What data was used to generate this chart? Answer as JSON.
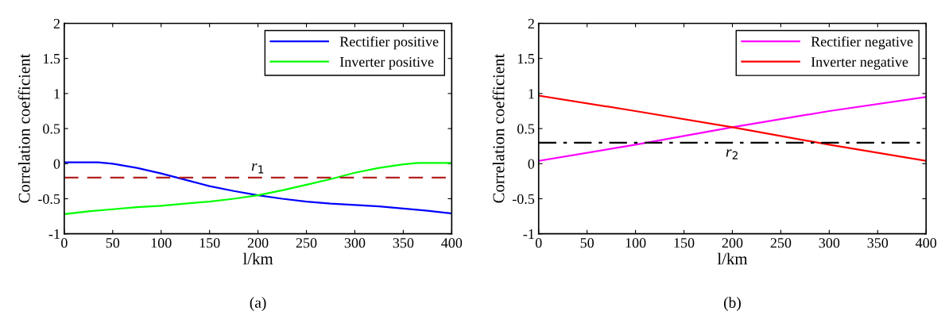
{
  "chart_data": [
    {
      "type": "line",
      "xlabel": "l/km",
      "ylabel": "Correlation coefficient",
      "annotations": [
        "(a)"
      ],
      "xlim": [
        0,
        400
      ],
      "xticks": [
        0,
        50,
        100,
        150,
        200,
        250,
        300,
        350,
        400
      ],
      "ylim": [
        -1,
        2
      ],
      "yticks": [
        -1,
        -0.5,
        0,
        0.5,
        1,
        1.5,
        2
      ],
      "grid": false,
      "legend": "top right",
      "line_style": "solid",
      "marker": "none",
      "series": [
        {
          "name": "Rectifier positive",
          "color": "#0000ff",
          "x": [
            0,
            35,
            50,
            75,
            100,
            125,
            150,
            175,
            200,
            225,
            250,
            275,
            300,
            325,
            350,
            375,
            400
          ],
          "values": [
            0.02,
            0.02,
            0.0,
            -0.06,
            -0.14,
            -0.23,
            -0.32,
            -0.39,
            -0.45,
            -0.5,
            -0.54,
            -0.57,
            -0.59,
            -0.61,
            -0.64,
            -0.67,
            -0.71
          ]
        },
        {
          "name": "Inverter positive",
          "color": "#00ff00",
          "x": [
            0,
            25,
            50,
            75,
            100,
            125,
            150,
            175,
            200,
            225,
            250,
            275,
            300,
            325,
            350,
            365,
            400
          ],
          "values": [
            -0.72,
            -0.68,
            -0.65,
            -0.62,
            -0.6,
            -0.57,
            -0.54,
            -0.5,
            -0.45,
            -0.38,
            -0.3,
            -0.22,
            -0.13,
            -0.06,
            -0.01,
            0.01,
            0.01
          ]
        }
      ],
      "ref_lines": [
        {
          "axis": "y",
          "value": -0.2,
          "label": "r$_{1}$",
          "color": "#b22222",
          "line_style": "dashed"
        }
      ]
    },
    {
      "type": "line",
      "xlabel": "l/km",
      "ylabel": "Correlation coefficient",
      "annotations": [
        "(b)"
      ],
      "xlim": [
        0,
        400
      ],
      "xticks": [
        0,
        50,
        100,
        150,
        200,
        250,
        300,
        350,
        400
      ],
      "ylim": [
        -1,
        2
      ],
      "yticks": [
        -1,
        -0.5,
        0,
        0.5,
        1,
        1.5,
        2
      ],
      "grid": false,
      "legend": "top right",
      "line_style": "solid",
      "marker": "none",
      "series": [
        {
          "name": "Rectifier negative",
          "color": "#ff00ff",
          "x": [
            0,
            100,
            200,
            300,
            400
          ],
          "values": [
            0.04,
            0.27,
            0.52,
            0.75,
            0.95
          ]
        },
        {
          "name": "Inverter negative",
          "color": "#ff0000",
          "x": [
            0,
            100,
            200,
            300,
            400
          ],
          "values": [
            0.97,
            0.75,
            0.52,
            0.27,
            0.04
          ]
        }
      ],
      "ref_lines": [
        {
          "axis": "y",
          "value": 0.3,
          "label": "r$_{2}$",
          "color": "#000000",
          "line_style": "dashdot"
        }
      ]
    }
  ]
}
